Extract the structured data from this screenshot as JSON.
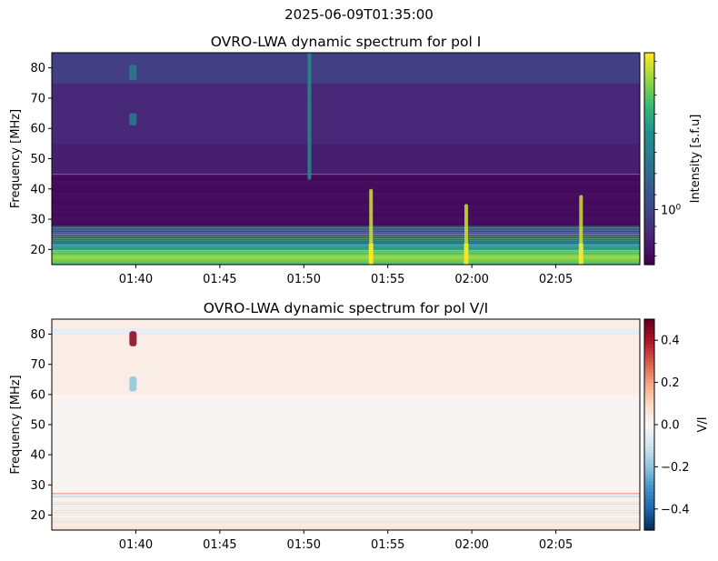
{
  "figure": {
    "suptitle": "2025-06-09T01:35:00"
  },
  "chart_data": [
    {
      "type": "heatmap",
      "title": "OVRO-LWA dynamic spectrum for pol I",
      "xlabel": "",
      "ylabel": "Frequency [MHz]",
      "x_tick_labels": [
        "01:40",
        "01:45",
        "01:50",
        "01:55",
        "02:00",
        "02:05"
      ],
      "x_tick_minutes": [
        40,
        45,
        50,
        55,
        60,
        65
      ],
      "xlim_minutes_after_01_00": [
        35,
        70
      ],
      "ylim": [
        15,
        85
      ],
      "y_ticks": [
        20,
        30,
        40,
        50,
        60,
        70,
        80
      ],
      "colormap": "viridis",
      "colorbar": {
        "label": "Intensity [s.f.u]",
        "scale": "log",
        "tick_label": "10⁰"
      },
      "features": [
        {
          "time": "01:39:50",
          "freq_range": [
            76,
            81
          ]
        },
        {
          "time": "01:39:50",
          "freq_range": [
            61,
            65
          ]
        },
        {
          "time": "01:50:20",
          "freq_range": [
            43,
            85
          ]
        },
        {
          "time": "01:54:00",
          "freq_range": [
            15,
            40
          ]
        },
        {
          "time": "01:59:40",
          "freq_range": [
            15,
            35
          ]
        },
        {
          "time": "02:06:30",
          "freq_range": [
            15,
            38
          ]
        }
      ]
    },
    {
      "type": "heatmap",
      "title": "OVRO-LWA dynamic spectrum for pol V/I",
      "xlabel": "",
      "ylabel": "Frequency [MHz]",
      "x_tick_labels": [
        "01:40",
        "01:45",
        "01:50",
        "01:55",
        "02:00",
        "02:05"
      ],
      "x_tick_minutes": [
        40,
        45,
        50,
        55,
        60,
        65
      ],
      "xlim_minutes_after_01_00": [
        35,
        70
      ],
      "ylim": [
        15,
        85
      ],
      "y_ticks": [
        20,
        30,
        40,
        50,
        60,
        70,
        80
      ],
      "colormap": "RdBu_r",
      "colorbar": {
        "label": "V/I",
        "range": [
          -0.5,
          0.5
        ],
        "ticks": [
          -0.4,
          -0.2,
          0.0,
          0.2,
          0.4
        ],
        "tick_labels": [
          "−0.4",
          "−0.2",
          "0.0",
          "0.2",
          "0.4"
        ]
      },
      "features": [
        {
          "time": "01:39:50",
          "freq_range": [
            76,
            81
          ],
          "value": 0.45
        },
        {
          "time": "01:39:50",
          "freq_range": [
            61,
            66
          ],
          "value": -0.2
        }
      ]
    }
  ]
}
